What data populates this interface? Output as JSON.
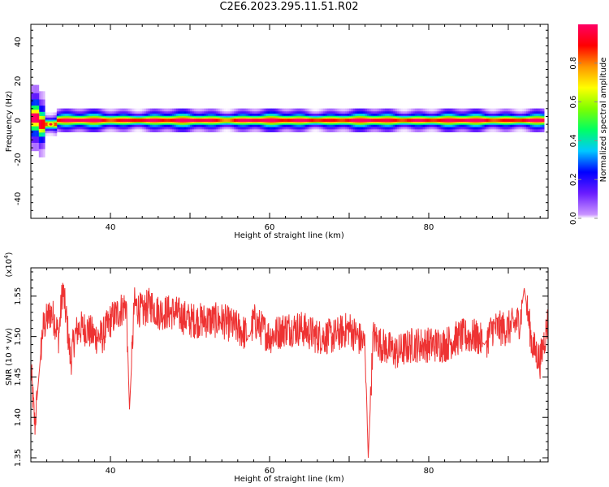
{
  "title": "C2E6.2023.295.11.51.R02",
  "chart_data": [
    {
      "type": "heatmap",
      "xlabel": "Height of straight line (km)",
      "ylabel": "Frequency (Hz)",
      "xlim": [
        30,
        95
      ],
      "ylim": [
        -50,
        49
      ],
      "xticks": [
        40,
        60,
        80
      ],
      "yticks": [
        40,
        20,
        0,
        -20,
        -40
      ],
      "colorbar": {
        "label": "Normalized spectral amplitude",
        "range": [
          0,
          1
        ],
        "ticks": [
          "0.0",
          "0.2",
          "0.4",
          "0.6",
          "0.8"
        ],
        "colors": [
          "#ffffff",
          "#c994ff",
          "#6a1cff",
          "#0000ff",
          "#00c8ff",
          "#00ff64",
          "#7dff00",
          "#ffff00",
          "#ff9600",
          "#ff0000",
          "#ff0064"
        ]
      },
      "ridge": {
        "frequency_hz": 0,
        "x_range": [
          30,
          94.5
        ],
        "peak_amplitude": 1.0,
        "dip_near_km": 32.5,
        "dip_frequency_hz": -2,
        "start_bulge_hz": [
          -4,
          6
        ]
      }
    },
    {
      "type": "line",
      "xlabel": "Height of straight line (km)",
      "ylabel": "SNR (10 * v/v)",
      "scale_label": "(x10",
      "scale_exp": "4",
      "scale_close": ")",
      "xlim": [
        30,
        95
      ],
      "ylim": [
        1.345,
        1.585
      ],
      "xticks": [
        40,
        60,
        80
      ],
      "yticks": [
        "1.35",
        "1.40",
        "1.45",
        "1.50",
        "1.55"
      ],
      "color": "#ee3333",
      "series": [
        {
          "x": [
            30,
            30.5,
            31,
            31.5,
            32,
            32.5,
            33,
            33.5,
            34,
            34.5,
            35,
            35.5,
            36,
            37,
            38,
            39,
            40,
            41,
            42,
            42.4,
            43,
            44,
            45,
            46,
            48,
            50,
            52,
            54,
            56,
            57.5,
            58,
            60,
            62,
            64,
            66,
            68,
            70,
            72,
            72.4,
            73,
            74,
            76,
            78,
            80,
            82,
            84,
            86,
            87,
            88,
            90,
            91.5,
            92,
            93,
            94,
            95
          ],
          "y": [
            1.46,
            1.39,
            1.45,
            1.51,
            1.52,
            1.53,
            1.52,
            1.5,
            1.56,
            1.52,
            1.47,
            1.5,
            1.51,
            1.51,
            1.5,
            1.5,
            1.52,
            1.53,
            1.54,
            1.41,
            1.54,
            1.53,
            1.54,
            1.53,
            1.53,
            1.52,
            1.52,
            1.52,
            1.51,
            1.5,
            1.52,
            1.5,
            1.51,
            1.51,
            1.5,
            1.5,
            1.51,
            1.49,
            1.35,
            1.5,
            1.49,
            1.48,
            1.49,
            1.49,
            1.49,
            1.5,
            1.5,
            1.49,
            1.51,
            1.51,
            1.52,
            1.56,
            1.49,
            1.47,
            1.52
          ]
        }
      ]
    }
  ]
}
